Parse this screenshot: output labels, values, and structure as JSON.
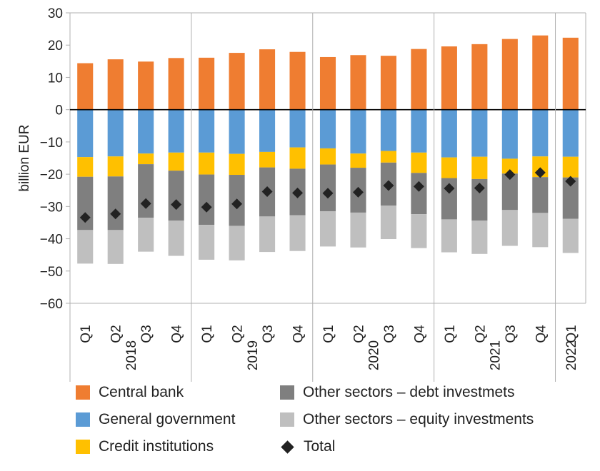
{
  "chart_data": {
    "type": "bar",
    "stacked": true,
    "ylabel": "billion EUR",
    "ylim": [
      -60,
      30
    ],
    "yticks": [
      30,
      20,
      10,
      0,
      -10,
      -20,
      -30,
      -40,
      -50,
      -60
    ],
    "categories": [
      "Q1",
      "Q2",
      "Q3",
      "Q4",
      "Q1",
      "Q2",
      "Q3",
      "Q4",
      "Q1",
      "Q2",
      "Q3",
      "Q4",
      "Q1",
      "Q2",
      "Q3",
      "Q4",
      "Q1"
    ],
    "groups": [
      {
        "label": "2018",
        "count": 4
      },
      {
        "label": "2019",
        "count": 4
      },
      {
        "label": "2020",
        "count": 4
      },
      {
        "label": "2021",
        "count": 4
      },
      {
        "label": "2022",
        "count": 1
      }
    ],
    "series": [
      {
        "name": "Central bank",
        "color": "#ef7d31",
        "values": [
          14.4,
          15.6,
          14.9,
          16.0,
          16.1,
          17.6,
          18.7,
          17.9,
          16.3,
          16.9,
          16.7,
          18.8,
          19.6,
          20.3,
          21.9,
          23.0,
          22.3
        ]
      },
      {
        "name": "General government",
        "color": "#5b9bd5",
        "values": [
          -14.7,
          -14.5,
          -13.6,
          -13.3,
          -13.3,
          -13.7,
          -13.1,
          -11.7,
          -12.0,
          -13.6,
          -12.8,
          -13.3,
          -14.8,
          -14.6,
          -15.2,
          -14.5,
          -14.6
        ]
      },
      {
        "name": "Credit institutions",
        "color": "#ffc000",
        "values": [
          -6.1,
          -6.2,
          -3.3,
          -5.6,
          -6.8,
          -6.5,
          -4.8,
          -6.6,
          -5.0,
          -4.4,
          -3.6,
          -6.3,
          -6.4,
          -6.9,
          -4.6,
          -6.4,
          -6.4
        ]
      },
      {
        "name": "Other sectors – debt investmets",
        "color": "#7f7f7f",
        "values": [
          -16.5,
          -16.6,
          -16.6,
          -15.5,
          -15.6,
          -15.8,
          -15.2,
          -14.4,
          -14.5,
          -13.9,
          -13.3,
          -12.8,
          -12.8,
          -12.9,
          -11.3,
          -11.1,
          -12.8
        ]
      },
      {
        "name": "Other sectors – equity investments",
        "color": "#bfbfbf",
        "values": [
          -10.4,
          -10.5,
          -10.5,
          -10.9,
          -10.8,
          -10.7,
          -11.0,
          -11.1,
          -10.9,
          -10.8,
          -10.4,
          -10.5,
          -10.2,
          -10.3,
          -11.1,
          -10.6,
          -10.6
        ]
      }
    ],
    "total": {
      "name": "Total",
      "color": "#222222",
      "values": [
        -33.4,
        -32.3,
        -29.1,
        -29.4,
        -30.2,
        -29.2,
        -25.4,
        -25.8,
        -25.9,
        -25.6,
        -23.5,
        -23.8,
        -24.4,
        -24.3,
        -20.1,
        -19.5,
        -22.2
      ]
    },
    "grid": false,
    "legend_position": "bottom"
  },
  "legend": [
    {
      "label": "Central bank",
      "color": "#ef7d31",
      "kind": "swatch"
    },
    {
      "label": "General government",
      "color": "#5b9bd5",
      "kind": "swatch"
    },
    {
      "label": "Credit institutions",
      "color": "#ffc000",
      "kind": "swatch"
    },
    {
      "label": "Other sectors – debt investmets",
      "color": "#7f7f7f",
      "kind": "swatch"
    },
    {
      "label": "Other sectors – equity investments",
      "color": "#bfbfbf",
      "kind": "swatch"
    },
    {
      "label": "Total",
      "color": "#222222",
      "kind": "diamond"
    }
  ]
}
